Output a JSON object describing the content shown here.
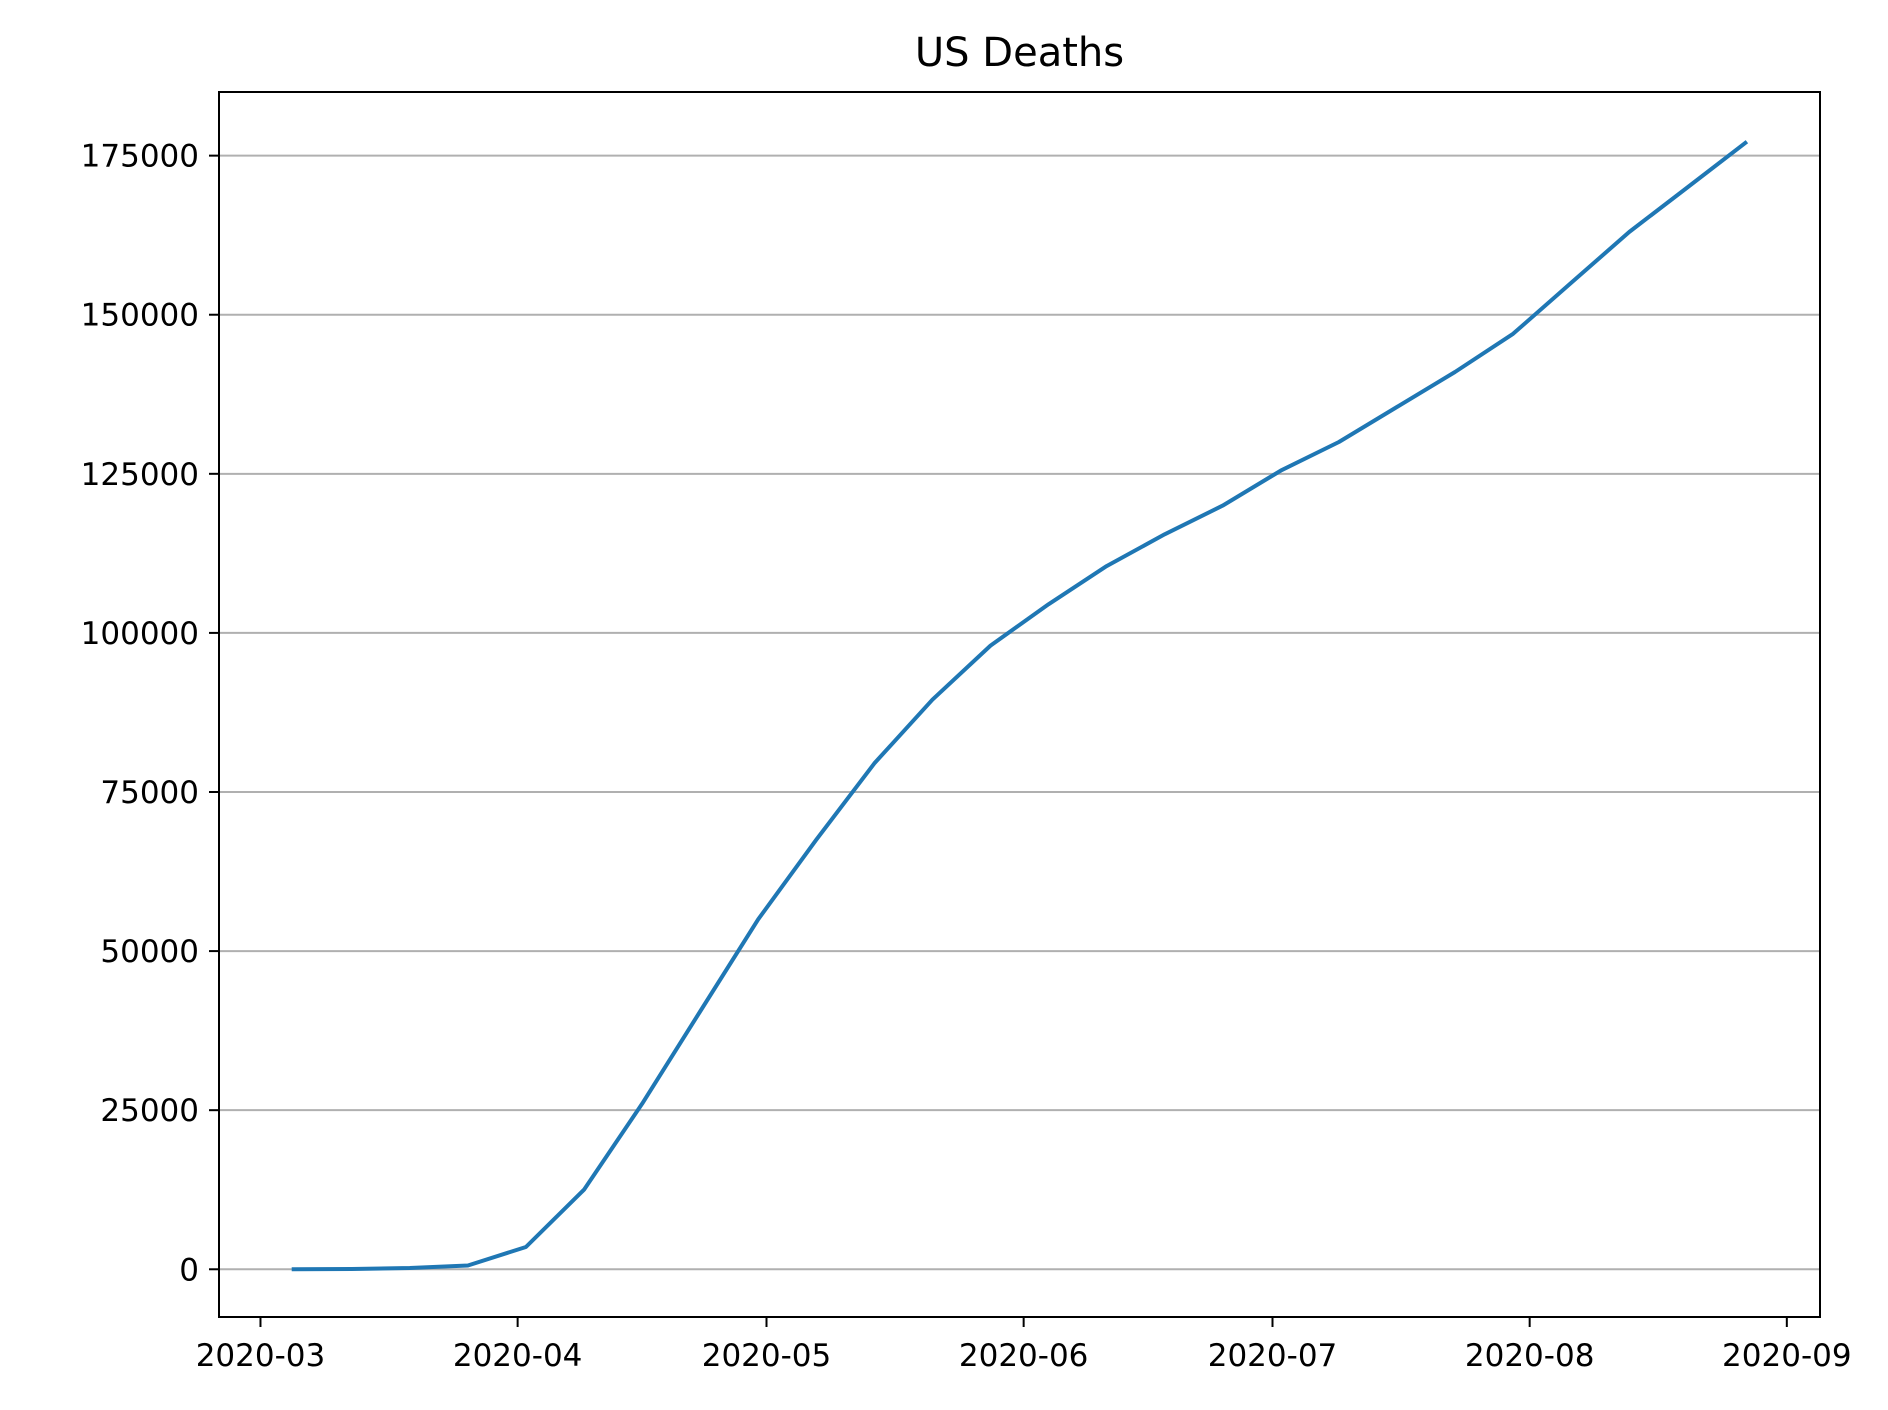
{
  "chart_data": {
    "type": "line",
    "title": "US Deaths",
    "xlabel": "",
    "ylabel": "",
    "x_axis_type": "date",
    "xlim": [
      "2020-02-25",
      "2020-09-05"
    ],
    "ylim": [
      -7500,
      185000
    ],
    "x_ticks": [
      "2020-03-01",
      "2020-04-01",
      "2020-05-01",
      "2020-06-01",
      "2020-07-01",
      "2020-08-01",
      "2020-09-01"
    ],
    "x_tick_labels": [
      "2020-03",
      "2020-04",
      "2020-05",
      "2020-06",
      "2020-07",
      "2020-08",
      "2020-09"
    ],
    "y_ticks": [
      0,
      25000,
      50000,
      75000,
      100000,
      125000,
      150000,
      175000
    ],
    "y_tick_labels": [
      "0",
      "25000",
      "50000",
      "75000",
      "100000",
      "125000",
      "150000",
      "175000"
    ],
    "grid": "y-only",
    "legend": "none",
    "series": [
      {
        "color": "#1f77b4",
        "x": [
          "2020-03-05",
          "2020-03-12",
          "2020-03-19",
          "2020-03-26",
          "2020-04-02",
          "2020-04-09",
          "2020-04-16",
          "2020-04-23",
          "2020-04-30",
          "2020-05-07",
          "2020-05-14",
          "2020-05-21",
          "2020-05-28",
          "2020-06-04",
          "2020-06-11",
          "2020-06-18",
          "2020-06-25",
          "2020-07-02",
          "2020-07-09",
          "2020-07-16",
          "2020-07-23",
          "2020-07-30",
          "2020-08-06",
          "2020-08-13",
          "2020-08-20",
          "2020-08-27"
        ],
        "y": [
          0,
          50,
          200,
          600,
          3500,
          12500,
          26000,
          40500,
          55000,
          67500,
          79500,
          89500,
          98000,
          104500,
          110500,
          115500,
          120000,
          125500,
          130000,
          135500,
          141000,
          147000,
          155000,
          163000,
          170000,
          177000
        ]
      }
    ]
  }
}
